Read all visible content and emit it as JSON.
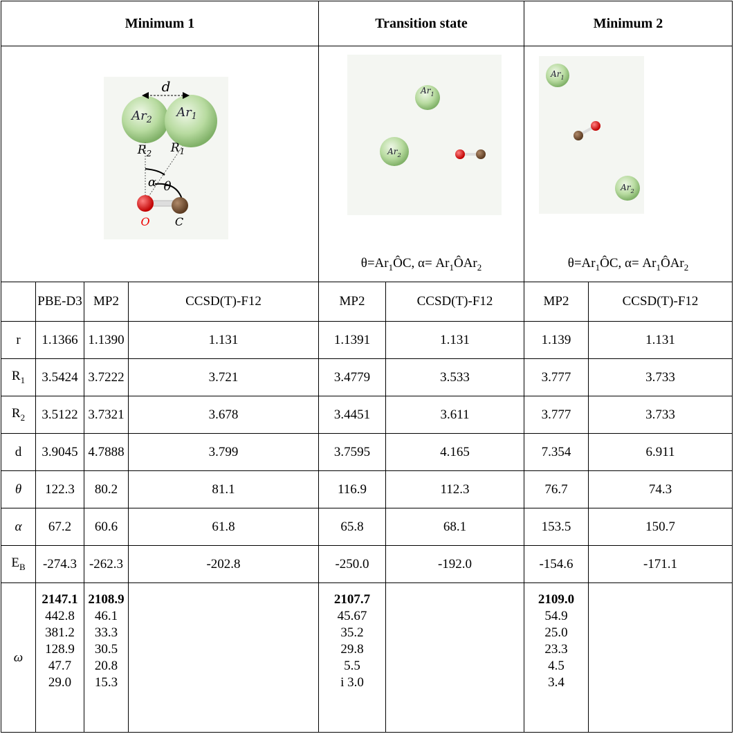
{
  "header": {
    "groups": [
      "Minimum 1",
      "Transition state",
      "Minimum 2"
    ]
  },
  "figures": [
    {
      "labels": {
        "d": "d",
        "ar1": [
          "Ar",
          "1"
        ],
        "ar2": [
          "Ar",
          "2"
        ],
        "r1": [
          "R",
          "1"
        ],
        "r2": [
          "R",
          "2"
        ],
        "alpha": "α",
        "theta": "θ",
        "o": "O",
        "c": "C"
      }
    },
    {
      "labels": {
        "ar1": [
          "Ar",
          "1"
        ],
        "ar2": [
          "Ar",
          "2"
        ]
      },
      "caption": [
        [
          "θ=Ar",
          "1"
        ],
        [
          "ÔC, α= Ar",
          "1"
        ],
        [
          "ÔAr",
          "2"
        ]
      ]
    },
    {
      "labels": {
        "ar1": [
          "Ar",
          "1"
        ],
        "ar2": [
          "Ar",
          "2"
        ]
      },
      "caption": [
        [
          "θ=Ar",
          "1"
        ],
        [
          "ÔC, α= Ar",
          "1"
        ],
        [
          "ÔAr",
          "2"
        ]
      ]
    }
  ],
  "table": {
    "methods": [
      "PBE-D3",
      "MP2",
      "CCSD(T)-F12",
      "MP2",
      "CCSD(T)-F12",
      "MP2",
      "CCSD(T)-F12"
    ],
    "rows": [
      {
        "label": [
          "r"
        ],
        "values": [
          "1.1366",
          "1.1390",
          "1.131",
          "1.1391",
          "1.131",
          "1.139",
          "1.131"
        ]
      },
      {
        "label": [
          "R",
          "1"
        ],
        "values": [
          "3.5424",
          "3.7222",
          "3.721",
          "3.4779",
          "3.533",
          "3.777",
          "3.733"
        ]
      },
      {
        "label": [
          "R",
          "2"
        ],
        "values": [
          "3.5122",
          "3.7321",
          "3.678",
          "3.4451",
          "3.611",
          "3.777",
          "3.733"
        ]
      },
      {
        "label": [
          "d"
        ],
        "values": [
          "3.9045",
          "4.7888",
          "3.799",
          "3.7595",
          "4.165",
          "7.354",
          "6.911"
        ]
      },
      {
        "label": [
          "θ"
        ],
        "values": [
          "122.3",
          "80.2",
          "81.1",
          "116.9",
          "112.3",
          "76.7",
          "74.3"
        ]
      },
      {
        "label": [
          "α"
        ],
        "values": [
          "67.2",
          "60.6",
          "61.8",
          "65.8",
          "68.1",
          "153.5",
          "150.7"
        ]
      },
      {
        "label": [
          "E",
          "B"
        ],
        "values": [
          "-274.3",
          "-262.3",
          "-202.8",
          "-250.0",
          "-192.0",
          "-154.6",
          "-171.1"
        ]
      }
    ],
    "omega": {
      "label": "ω",
      "columns": [
        [
          "2147.1",
          "442.8",
          "381.2",
          "128.9",
          "47.7",
          "29.0"
        ],
        [
          "2108.9",
          "46.1",
          "33.3",
          "30.5",
          "20.8",
          "15.3"
        ],
        [],
        [
          "2107.7",
          "45.67",
          "35.2",
          "29.8",
          "5.5",
          "i 3.0"
        ],
        [],
        [
          "2109.0",
          "54.9",
          "25.0",
          "23.3",
          "4.5",
          "3.4"
        ],
        []
      ]
    }
  }
}
